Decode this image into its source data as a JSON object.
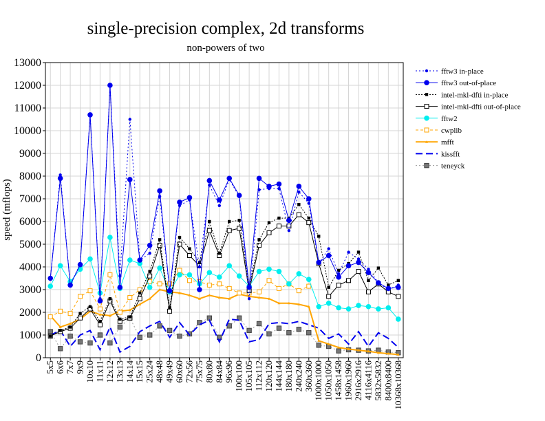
{
  "chart_data": {
    "type": "line",
    "title": "single-precision complex, 2d transforms",
    "subtitle": "non-powers of two",
    "xlabel": "",
    "ylabel": "speed (mflops)",
    "ylim": [
      0,
      13000
    ],
    "yticks": [
      0,
      1000,
      2000,
      3000,
      4000,
      5000,
      6000,
      7000,
      8000,
      9000,
      10000,
      11000,
      12000,
      13000
    ],
    "grid": true,
    "legend_position": "right",
    "categories": [
      "5x5",
      "6x6",
      "7x7",
      "9x9",
      "10x10",
      "11x11",
      "12x12",
      "13x13",
      "14x14",
      "15x15",
      "25x24",
      "48x48",
      "49x49",
      "60x60",
      "72x56",
      "75x75",
      "80x80",
      "84x84",
      "96x96",
      "100x100",
      "105x105",
      "112x112",
      "120x120",
      "144x144",
      "180x180",
      "240x240",
      "360x360",
      "1000x1000",
      "1050x1050",
      "1458x1458",
      "1960x1960",
      "2916x2916",
      "4116x4116",
      "5832x5832",
      "8400x8400",
      "10368x10368"
    ],
    "series": [
      {
        "name": "fftw3 in-place",
        "color": "#0000ee",
        "dash": "2,3",
        "marker": "dot",
        "values": [
          3500,
          8050,
          3200,
          4150,
          10700,
          2600,
          12000,
          3600,
          10500,
          4300,
          4600,
          7100,
          2900,
          6700,
          6950,
          4000,
          7600,
          6700,
          7850,
          7100,
          2600,
          7400,
          7450,
          7450,
          5600,
          7300,
          6800,
          4150,
          4800,
          3700,
          4650,
          4350,
          3900,
          3300,
          3000,
          3200
        ]
      },
      {
        "name": "fftw3 out-of-place",
        "color": "#0000ee",
        "dash": "",
        "marker": "bigdot",
        "values": [
          3500,
          7900,
          3200,
          4100,
          10700,
          2500,
          12000,
          3100,
          7850,
          4300,
          4950,
          7350,
          2950,
          6850,
          7050,
          3000,
          7800,
          6950,
          7900,
          7150,
          3100,
          7900,
          7550,
          7650,
          6050,
          7550,
          7000,
          4200,
          4500,
          3550,
          4050,
          4200,
          3750,
          3300,
          3050,
          3100
        ]
      },
      {
        "name": "intel-mkl-dfti in-place",
        "color": "#000000",
        "dash": "2,2",
        "marker": "filledsquare",
        "values": [
          950,
          1200,
          1350,
          1950,
          2250,
          1600,
          2600,
          1700,
          1800,
          2850,
          3800,
          5200,
          2200,
          5300,
          4800,
          4200,
          6000,
          4600,
          6000,
          6050,
          3100,
          5200,
          5950,
          6150,
          6150,
          6750,
          6150,
          5350,
          3100,
          3850,
          4150,
          4650,
          3400,
          3950,
          3200,
          3400
        ]
      },
      {
        "name": "intel-mkl-dfti out-of-place",
        "color": "#000000",
        "dash": "",
        "marker": "opensquare",
        "values": [
          950,
          1150,
          1300,
          1750,
          2150,
          1450,
          2500,
          1600,
          1750,
          2600,
          3600,
          4950,
          2050,
          5000,
          4500,
          4050,
          5600,
          4500,
          5600,
          5700,
          2950,
          4950,
          5500,
          5800,
          5800,
          6300,
          5950,
          4150,
          2700,
          3200,
          3400,
          3800,
          2900,
          3250,
          2900,
          2700
        ]
      },
      {
        "name": "fftw2",
        "color": "#00eeee",
        "dash": "",
        "marker": "bigdot",
        "values": [
          3150,
          4050,
          3350,
          3900,
          4350,
          2850,
          5300,
          3050,
          4300,
          4150,
          3100,
          3950,
          2900,
          3650,
          3650,
          3250,
          3750,
          3550,
          4050,
          3600,
          3150,
          3800,
          3900,
          3800,
          3250,
          3700,
          3450,
          2250,
          2400,
          2200,
          2150,
          2300,
          2250,
          2150,
          2200,
          1700
        ]
      },
      {
        "name": "cwplib",
        "color": "#ffa500",
        "dash": "4,3",
        "marker": "opensquare",
        "values": [
          1800,
          2050,
          1950,
          2700,
          2950,
          2150,
          3650,
          2000,
          2650,
          3000,
          3350,
          3250,
          3250,
          3850,
          3400,
          3350,
          3200,
          3250,
          3050,
          2850,
          2850,
          2900,
          3400,
          3050,
          3250,
          2950,
          3150,
          null,
          null,
          null,
          null,
          null,
          null,
          null,
          null,
          null
        ]
      },
      {
        "name": "mfft",
        "color": "#ffa500",
        "dash": "",
        "marker": "tri",
        "values": [
          1850,
          1350,
          1500,
          1700,
          2050,
          1900,
          1850,
          2050,
          2100,
          2350,
          2600,
          3000,
          2900,
          2850,
          2750,
          2600,
          2750,
          2650,
          2600,
          2800,
          2700,
          2650,
          2600,
          2400,
          2400,
          2350,
          2250,
          750,
          600,
          450,
          380,
          330,
          280,
          220,
          180,
          140
        ]
      },
      {
        "name": "kissfft",
        "color": "#0000ee",
        "dash": "10,5",
        "marker": "none",
        "values": [
          1000,
          1200,
          500,
          1000,
          1200,
          350,
          1350,
          250,
          500,
          1150,
          1400,
          1600,
          900,
          1550,
          1000,
          1450,
          1650,
          700,
          1700,
          1650,
          700,
          800,
          1500,
          1550,
          1500,
          1600,
          1450,
          1300,
          850,
          1050,
          600,
          1150,
          500,
          1100,
          850,
          450
        ]
      },
      {
        "name": "teneyck",
        "color": "#999999",
        "dash": "2,3",
        "marker": "grayopensquare",
        "values": [
          1150,
          400,
          950,
          700,
          650,
          1000,
          650,
          1350,
          1750,
          900,
          1000,
          1400,
          1200,
          950,
          1050,
          1550,
          1750,
          900,
          1400,
          1750,
          1200,
          1500,
          1050,
          1300,
          1100,
          1250,
          1100,
          550,
          500,
          300,
          350,
          330,
          300,
          330,
          250,
          220
        ]
      }
    ]
  }
}
